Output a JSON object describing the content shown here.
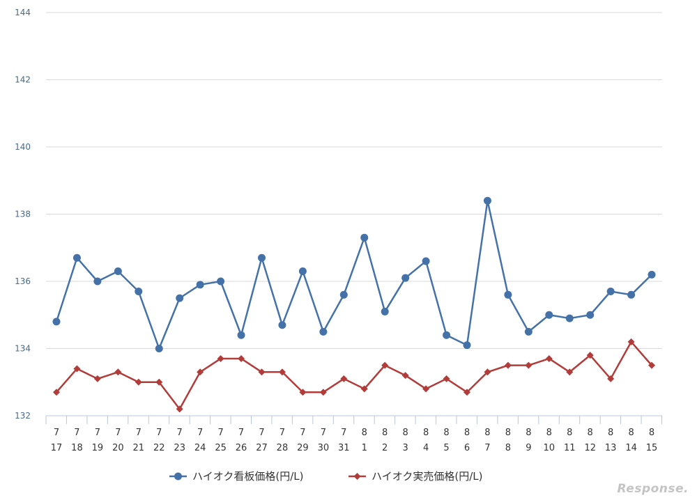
{
  "watermark": "Response.",
  "chart_data": {
    "type": "line",
    "categories": [
      [
        "7",
        "17"
      ],
      [
        "7",
        "18"
      ],
      [
        "7",
        "19"
      ],
      [
        "7",
        "20"
      ],
      [
        "7",
        "21"
      ],
      [
        "7",
        "22"
      ],
      [
        "7",
        "23"
      ],
      [
        "7",
        "24"
      ],
      [
        "7",
        "25"
      ],
      [
        "7",
        "26"
      ],
      [
        "7",
        "27"
      ],
      [
        "7",
        "28"
      ],
      [
        "7",
        "29"
      ],
      [
        "7",
        "30"
      ],
      [
        "7",
        "31"
      ],
      [
        "8",
        "1"
      ],
      [
        "8",
        "2"
      ],
      [
        "8",
        "3"
      ],
      [
        "8",
        "4"
      ],
      [
        "8",
        "5"
      ],
      [
        "8",
        "6"
      ],
      [
        "8",
        "7"
      ],
      [
        "8",
        "8"
      ],
      [
        "8",
        "9"
      ],
      [
        "8",
        "10"
      ],
      [
        "8",
        "11"
      ],
      [
        "8",
        "12"
      ],
      [
        "8",
        "13"
      ],
      [
        "8",
        "14"
      ],
      [
        "8",
        "15"
      ]
    ],
    "ylim": [
      132,
      144
    ],
    "yticks": [
      132,
      134,
      136,
      138,
      140,
      142,
      144
    ],
    "grid": true,
    "legend_position": "bottom",
    "series": [
      {
        "name": "ハイオク看板価格(円/L)",
        "color": "#4472a8",
        "marker": "circle",
        "values": [
          134.8,
          136.7,
          136.0,
          136.3,
          135.7,
          134.0,
          135.5,
          135.9,
          136.0,
          134.4,
          136.7,
          134.7,
          136.3,
          134.5,
          135.6,
          137.3,
          135.1,
          136.1,
          136.6,
          134.4,
          134.1,
          138.4,
          135.6,
          134.5,
          135.0,
          134.9,
          135.0,
          135.7,
          135.6,
          136.2
        ]
      },
      {
        "name": "ハイオク実売価格(円/L)",
        "color": "#b23c3a",
        "marker": "diamond",
        "values": [
          132.7,
          133.4,
          133.1,
          133.3,
          133.0,
          133.0,
          132.2,
          133.3,
          133.7,
          133.7,
          133.3,
          133.3,
          132.7,
          132.7,
          133.1,
          132.8,
          133.5,
          133.2,
          132.8,
          133.1,
          132.7,
          133.3,
          133.5,
          133.5,
          133.7,
          133.3,
          133.8,
          133.1,
          134.2,
          133.5
        ]
      }
    ]
  }
}
